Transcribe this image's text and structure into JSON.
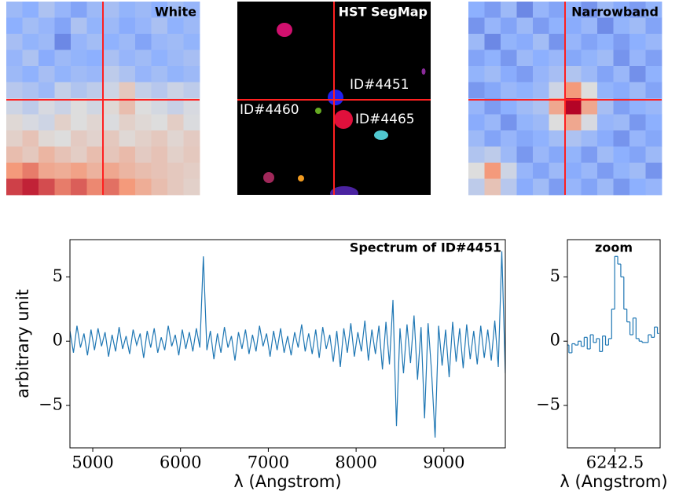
{
  "chart_data": [
    {
      "type": "heatmap",
      "title": "White",
      "colormap": "coolwarm",
      "values": [
        [
          0.3,
          0.25,
          0.35,
          0.28,
          0.22,
          0.3,
          0.33,
          0.27,
          0.3,
          0.25,
          0.32,
          0.28
        ],
        [
          0.25,
          0.32,
          0.28,
          0.22,
          0.35,
          0.27,
          0.3,
          0.24,
          0.28,
          0.34,
          0.26,
          0.3
        ],
        [
          0.33,
          0.27,
          0.3,
          0.15,
          0.28,
          0.32,
          0.26,
          0.3,
          0.22,
          0.29,
          0.31,
          0.27
        ],
        [
          0.28,
          0.35,
          0.24,
          0.3,
          0.27,
          0.25,
          0.34,
          0.28,
          0.31,
          0.26,
          0.3,
          0.33
        ],
        [
          0.3,
          0.26,
          0.33,
          0.27,
          0.31,
          0.29,
          0.4,
          0.35,
          0.28,
          0.32,
          0.27,
          0.3
        ],
        [
          0.38,
          0.35,
          0.3,
          0.42,
          0.36,
          0.4,
          0.45,
          0.58,
          0.42,
          0.38,
          0.44,
          0.4
        ],
        [
          0.45,
          0.4,
          0.48,
          0.44,
          0.5,
          0.46,
          0.52,
          0.62,
          0.5,
          0.47,
          0.43,
          0.48
        ],
        [
          0.52,
          0.48,
          0.45,
          0.55,
          0.5,
          0.53,
          0.49,
          0.55,
          0.52,
          0.5,
          0.56,
          0.49
        ],
        [
          0.55,
          0.6,
          0.52,
          0.5,
          0.57,
          0.54,
          0.58,
          0.52,
          0.55,
          0.58,
          0.53,
          0.57
        ],
        [
          0.62,
          0.58,
          0.65,
          0.6,
          0.56,
          0.62,
          0.59,
          0.63,
          0.57,
          0.6,
          0.55,
          0.58
        ],
        [
          0.75,
          0.8,
          0.7,
          0.68,
          0.72,
          0.66,
          0.7,
          0.65,
          0.62,
          0.6,
          0.58,
          0.56
        ],
        [
          0.9,
          0.95,
          0.88,
          0.8,
          0.85,
          0.78,
          0.82,
          0.75,
          0.68,
          0.62,
          0.58,
          0.55
        ]
      ]
    },
    {
      "type": "segmap",
      "title": "HST SegMap",
      "labels": [
        "ID#4451",
        "ID#4460",
        "ID#4465"
      ]
    },
    {
      "type": "heatmap",
      "title": "Narrowband",
      "colormap": "coolwarm",
      "values": [
        [
          0.25,
          0.2,
          0.3,
          0.15,
          0.28,
          0.22,
          0.26,
          0.18,
          0.3,
          0.24,
          0.2,
          0.27
        ],
        [
          0.18,
          0.28,
          0.22,
          0.3,
          0.2,
          0.26,
          0.24,
          0.29,
          0.16,
          0.27,
          0.31,
          0.22
        ],
        [
          0.3,
          0.15,
          0.27,
          0.24,
          0.32,
          0.18,
          0.28,
          0.22,
          0.26,
          0.2,
          0.25,
          0.29
        ],
        [
          0.22,
          0.26,
          0.19,
          0.3,
          0.25,
          0.29,
          0.23,
          0.27,
          0.31,
          0.18,
          0.28,
          0.21
        ],
        [
          0.27,
          0.31,
          0.24,
          0.2,
          0.28,
          0.33,
          0.36,
          0.3,
          0.22,
          0.29,
          0.17,
          0.26
        ],
        [
          0.19,
          0.23,
          0.29,
          0.26,
          0.3,
          0.45,
          0.75,
          0.5,
          0.27,
          0.24,
          0.3,
          0.22
        ],
        [
          0.28,
          0.2,
          0.25,
          0.31,
          0.35,
          0.7,
          1.0,
          0.7,
          0.33,
          0.21,
          0.26,
          0.29
        ],
        [
          0.24,
          0.29,
          0.18,
          0.27,
          0.3,
          0.5,
          0.7,
          0.48,
          0.28,
          0.3,
          0.19,
          0.25
        ],
        [
          0.3,
          0.22,
          0.28,
          0.23,
          0.26,
          0.32,
          0.35,
          0.3,
          0.24,
          0.18,
          0.28,
          0.23
        ],
        [
          0.36,
          0.4,
          0.3,
          0.19,
          0.29,
          0.23,
          0.27,
          0.2,
          0.31,
          0.25,
          0.22,
          0.3
        ],
        [
          0.5,
          0.75,
          0.45,
          0.28,
          0.22,
          0.3,
          0.24,
          0.29,
          0.2,
          0.27,
          0.31,
          0.18
        ],
        [
          0.4,
          0.6,
          0.38,
          0.24,
          0.31,
          0.2,
          0.28,
          0.22,
          0.3,
          0.19,
          0.25,
          0.28
        ]
      ]
    },
    {
      "type": "line",
      "title": "Spectrum of ID#4451",
      "xlabel": "λ (Angstrom)",
      "ylabel": "arbitrary unit",
      "color": "#1f77b4",
      "x": [
        4740,
        4780,
        4820,
        4860,
        4900,
        4940,
        4980,
        5020,
        5060,
        5100,
        5140,
        5180,
        5220,
        5260,
        5300,
        5340,
        5380,
        5420,
        5460,
        5500,
        5540,
        5580,
        5620,
        5660,
        5700,
        5740,
        5780,
        5820,
        5860,
        5900,
        5940,
        5980,
        6020,
        6060,
        6100,
        6140,
        6180,
        6220,
        6260,
        6300,
        6340,
        6380,
        6420,
        6460,
        6500,
        6540,
        6580,
        6620,
        6660,
        6700,
        6740,
        6780,
        6820,
        6860,
        6900,
        6940,
        6980,
        7020,
        7060,
        7100,
        7140,
        7180,
        7220,
        7260,
        7300,
        7340,
        7380,
        7420,
        7460,
        7500,
        7540,
        7580,
        7620,
        7660,
        7700,
        7740,
        7780,
        7820,
        7860,
        7900,
        7940,
        7980,
        8020,
        8060,
        8100,
        8140,
        8180,
        8220,
        8260,
        8300,
        8340,
        8380,
        8420,
        8460,
        8500,
        8540,
        8580,
        8620,
        8660,
        8700,
        8740,
        8780,
        8820,
        8860,
        8900,
        8940,
        8980,
        9020,
        9060,
        9100,
        9140,
        9180,
        9220,
        9260,
        9300,
        9340,
        9380,
        9420,
        9460,
        9500,
        9540,
        9580,
        9620,
        9660,
        9700
      ],
      "values": [
        0.8,
        -0.9,
        1.2,
        -0.5,
        0.6,
        -1.1,
        0.9,
        -0.7,
        1.0,
        -0.4,
        0.7,
        -1.2,
        0.5,
        -0.8,
        1.1,
        -0.6,
        0.4,
        -1.0,
        0.9,
        -0.3,
        0.6,
        -1.3,
        0.8,
        -0.5,
        1.0,
        -0.9,
        0.3,
        -0.7,
        1.2,
        -0.4,
        0.5,
        -1.1,
        0.9,
        -0.6,
        0.7,
        -0.8,
        1.0,
        -0.5,
        6.6,
        -0.7,
        0.8,
        -1.4,
        0.6,
        -0.9,
        1.1,
        -0.5,
        0.4,
        -1.5,
        0.7,
        -0.6,
        0.9,
        -1.0,
        0.5,
        -0.8,
        1.2,
        -0.4,
        0.6,
        -1.2,
        0.8,
        -0.7,
        1.0,
        -0.9,
        0.4,
        -1.1,
        0.7,
        -0.5,
        1.3,
        -0.8,
        0.6,
        -1.0,
        0.9,
        -1.3,
        1.1,
        -0.6,
        0.5,
        -1.6,
        0.8,
        -2.0,
        1.0,
        -0.9,
        1.4,
        -1.2,
        0.7,
        -0.8,
        1.6,
        -1.5,
        0.9,
        -1.0,
        1.2,
        -2.2,
        1.5,
        -1.8,
        3.2,
        -6.6,
        1.0,
        -2.5,
        1.3,
        -1.7,
        2.0,
        -3.0,
        1.1,
        -6.0,
        1.4,
        -2.4,
        -7.5,
        1.2,
        -1.9,
        0.9,
        -2.8,
        1.5,
        -1.6,
        1.0,
        -2.1,
        1.3,
        -1.4,
        0.8,
        -1.8,
        1.2,
        -1.3,
        0.9,
        -1.5,
        1.6,
        -2.0,
        7.0,
        -2.5
      ],
      "xlim": [
        4740,
        9700
      ],
      "ylim": [
        -8.3,
        7.9
      ],
      "xticks": [
        5000,
        6000,
        7000,
        8000,
        9000
      ],
      "yticks": [
        {
          "value": -5,
          "label": "−5"
        },
        0,
        5
      ]
    },
    {
      "type": "step",
      "title": "zoom",
      "xlabel": "λ (Angstrom)",
      "color": "#1f77b4",
      "x": [
        6223,
        6224.25,
        6225.5,
        6226.75,
        6228,
        6229.25,
        6230.5,
        6231.75,
        6233,
        6234.25,
        6235.5,
        6236.75,
        6238,
        6239.25,
        6240.5,
        6241.75,
        6243,
        6244.25,
        6245.5,
        6246.75,
        6248,
        6249.25,
        6250.5,
        6251.75,
        6253,
        6254.25,
        6255.5,
        6256.75,
        6258,
        6259.25,
        6260.5
      ],
      "values": [
        -0.3,
        -0.9,
        -0.2,
        -0.3,
        0.0,
        -0.4,
        0.3,
        -0.6,
        0.5,
        -0.1,
        0.2,
        -0.8,
        0.4,
        -0.3,
        0.2,
        2.5,
        6.6,
        6.0,
        5.0,
        2.5,
        1.5,
        0.5,
        1.8,
        0.2,
        0.0,
        -0.1,
        -0.1,
        0.5,
        0.3,
        1.1,
        0.6
      ],
      "xlim": [
        6223,
        6261
      ],
      "ylim": [
        -8.3,
        7.9
      ],
      "xticks": [
        6242.5
      ],
      "yticks": [
        {
          "value": -5,
          "label": "−5"
        },
        0,
        5
      ]
    }
  ]
}
